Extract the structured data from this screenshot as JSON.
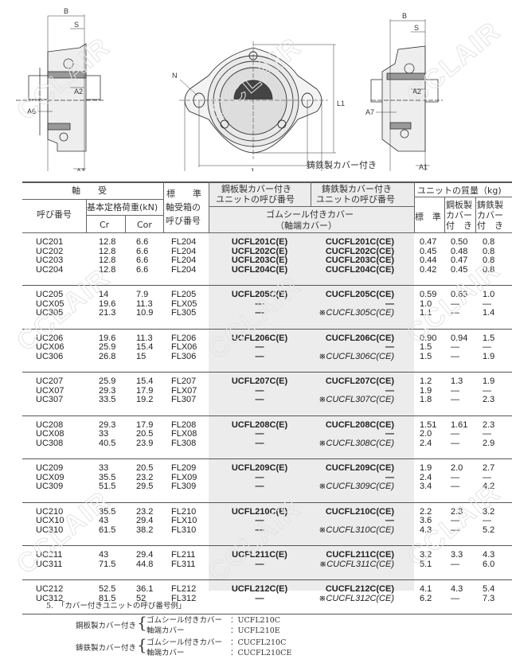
{
  "drawing": {
    "labels_left": {
      "B": "B",
      "S": "S",
      "A2": "A2",
      "A6": "A6",
      "A1": "A1",
      "A4": "A4"
    },
    "labels_center": {
      "N": "N",
      "L1": "L1",
      "J": "J",
      "H": "H"
    },
    "labels_right": {
      "B": "B",
      "S": "S",
      "A2": "A2",
      "A7": "A7",
      "A1": "A1",
      "A5": "A5"
    },
    "caption": "鋳鉄製カバー付き"
  },
  "watermark": "CCLAIR",
  "table": {
    "header": {
      "bearing": "軸　　受",
      "designation": "呼び番号",
      "load_rating": "基本定格荷重(kN)",
      "cr": "Cr",
      "cor": "Cor",
      "housing_1": "標　　準",
      "housing_2": "軸受箱の",
      "housing_3": "呼び番号",
      "steel_cover_1": "鋼板製カバー付き",
      "steel_cover_2": "ユニットの呼び番号",
      "cast_cover_1": "鋳鉄製カバー付き",
      "cast_cover_2": "ユニットの呼び番号",
      "rubber_seal": "ゴムシール付きカバー",
      "end_cover": "（軸端カバー）",
      "mass": "ユニットの質量（kg)",
      "mass_std": "標　準",
      "mass_steel_1": "鋼板製",
      "mass_steel_2": "カバー",
      "mass_steel_3": "付　き",
      "mass_cast_1": "鋳鉄製",
      "mass_cast_2": "カバー",
      "mass_cast_3": "付　き"
    },
    "groups": [
      [
        [
          "UC201",
          "12.8",
          "6.6",
          "FL204",
          "UCFL201C(E)",
          "CUCFL201C(CE)",
          "0.47",
          "0.50",
          "0.8"
        ],
        [
          "UC202",
          "12.8",
          "6.6",
          "FL204",
          "UCFL202C(E)",
          "CUCFL202C(CE)",
          "0.45",
          "0.48",
          "0.8"
        ],
        [
          "UC203",
          "12.8",
          "6.6",
          "FL204",
          "UCFL203C(E)",
          "CUCFL203C(CE)",
          "0.44",
          "0.47",
          "0.8"
        ],
        [
          "UC204",
          "12.8",
          "6.6",
          "FL204",
          "UCFL204C(E)",
          "CUCFL204C(CE)",
          "0.42",
          "0.45",
          "0.8"
        ]
      ],
      [
        [
          "UC205",
          "14",
          "7.9",
          "FL205",
          "UCFL205C(E)",
          "CUCFL205C(CE)",
          "0.59",
          "0.63",
          "1.0"
        ],
        [
          "UCX05",
          "19.6",
          "11.3",
          "FLX05",
          "—",
          "—",
          "1.0",
          "—",
          "—"
        ],
        [
          "UC305",
          "21.3",
          "10.9",
          "FL305",
          "—",
          "※CUCFL305C(CE)",
          "1.1",
          "—",
          "1.4"
        ]
      ],
      [
        [
          "UC206",
          "19.6",
          "11.3",
          "FL206",
          "UCFL206C(E)",
          "CUCFL206C(CE)",
          "0.90",
          "0.94",
          "1.5"
        ],
        [
          "UCX06",
          "25.9",
          "15.4",
          "FLX06",
          "—",
          "—",
          "1.5",
          "—",
          "—"
        ],
        [
          "UC306",
          "26.8",
          "15",
          "FL306",
          "—",
          "※CUCFL306C(CE)",
          "1.5",
          "—",
          "1.9"
        ]
      ],
      [
        [
          "UC207",
          "25.9",
          "15.4",
          "FL207",
          "UCFL207C(E)",
          "CUCFL207C(CE)",
          "1.2",
          "1.3",
          "1.9"
        ],
        [
          "UCX07",
          "29.3",
          "17.9",
          "FLX07",
          "—",
          "—",
          "1.9",
          "—",
          "—"
        ],
        [
          "UC307",
          "33.5",
          "19.2",
          "FL307",
          "—",
          "※CUCFL307C(CE)",
          "1.8",
          "—",
          "2.3"
        ]
      ],
      [
        [
          "UC208",
          "29.3",
          "17.9",
          "FL208",
          "UCFL208C(E)",
          "CUCFL208C(CE)",
          "1.51",
          "1.61",
          "2.3"
        ],
        [
          "UCX08",
          "33",
          "20.5",
          "FLX08",
          "—",
          "—",
          "2.0",
          "—",
          "—"
        ],
        [
          "UC308",
          "40.5",
          "23.9",
          "FL308",
          "—",
          "※CUCFL308C(CE)",
          "2.4",
          "—",
          "2.9"
        ]
      ],
      [
        [
          "UC209",
          "33",
          "20.5",
          "FL209",
          "UCFL209C(E)",
          "CUCFL209C(CE)",
          "1.9",
          "2.0",
          "2.7"
        ],
        [
          "UCX09",
          "35.5",
          "23.2",
          "FLX09",
          "—",
          "—",
          "2.4",
          "—",
          "—"
        ],
        [
          "UC309",
          "51.5",
          "29.5",
          "FL309",
          "—",
          "※CUCFL309C(CE)",
          "3.4",
          "—",
          "4.2"
        ]
      ],
      [
        [
          "UC210",
          "35.5",
          "23.2",
          "FL210",
          "UCFL210C(E)",
          "CUCFL210C(CE)",
          "2.2",
          "2.3",
          "3.2"
        ],
        [
          "UCX10",
          "43",
          "29.4",
          "FLX10",
          "—",
          "—",
          "3.6",
          "—",
          "—"
        ],
        [
          "UC310",
          "61.5",
          "38.2",
          "FL310",
          "—",
          "※CUCFL310C(CE)",
          "4.3",
          "—",
          "5.2"
        ]
      ],
      [
        [
          "UC211",
          "43",
          "29.4",
          "FL211",
          "UCFL211C(E)",
          "CUCFL211C(CE)",
          "3.2",
          "3.3",
          "4.3"
        ],
        [
          "UC311",
          "71.5",
          "44.8",
          "FL311",
          "—",
          "※CUCFL311C(CE)",
          "5.1",
          "—",
          "6.0"
        ]
      ],
      [
        [
          "UC212",
          "52.5",
          "36.1",
          "FL212",
          "UCFL212C(E)",
          "CUCFL212C(CE)",
          "4.1",
          "4.3",
          "5.4"
        ],
        [
          "UC312",
          "81.5",
          "52",
          "FL312",
          "—",
          "※CUCFL312C(CE)",
          "6.2",
          "—",
          "7.3"
        ]
      ]
    ]
  },
  "notes": {
    "title": "5.　「カバー付きユニットの呼び番号例」",
    "steel_label": "鋼板製カバー付き",
    "steel_rubber": "ゴムシール付きカバー",
    "steel_rubber_code": "：UCFL210C",
    "steel_end": "軸端カバー",
    "steel_end_code": "：UCFL210E",
    "cast_label": "鋳鉄製カバー付き",
    "cast_rubber": "ゴムシール付きカバー",
    "cast_rubber_code": "：CUCFL210C",
    "cast_end": "軸端カバー",
    "cast_end_code": "：CUCFL210CE"
  }
}
